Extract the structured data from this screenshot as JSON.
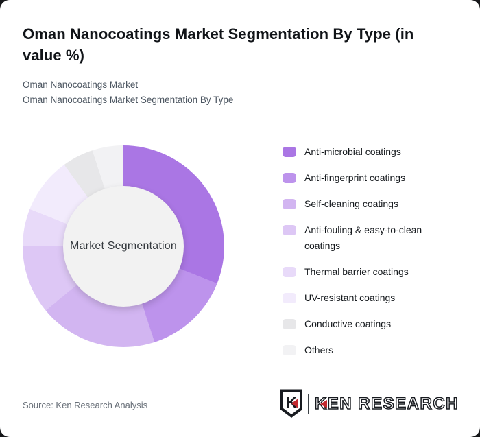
{
  "header": {
    "title": "Oman Nanocoatings Market Segmentation By Type (in value %)",
    "subtitle_line1": "Oman Nanocoatings Market",
    "subtitle_line2": "Oman Nanocoatings Market Segmentation By Type"
  },
  "chart_data": {
    "type": "pie",
    "subtype": "donut",
    "title": "Oman Nanocoatings Market Segmentation By Type (in value %)",
    "center_label": "Market Segmentation",
    "unit": "%",
    "start_angle_deg": 0,
    "direction": "clockwise",
    "legend_position": "right",
    "categories": [
      "Anti-microbial coatings",
      "Anti-fingerprint coatings",
      "Self-cleaning coatings",
      "Anti-fouling & easy-to-clean coatings",
      "Thermal barrier coatings",
      "UV-resistant coatings",
      "Conductive coatings",
      "Others"
    ],
    "values": [
      31,
      14,
      19,
      11,
      6,
      9,
      5,
      5
    ],
    "colors": [
      "#aa76e4",
      "#bd93ec",
      "#d2b5f1",
      "#ddc7f5",
      "#e8daf9",
      "#f2ebfc",
      "#e7e7e9",
      "#f2f2f4"
    ],
    "hole_color": "#f2f2f2"
  },
  "footer": {
    "source_text": "Source: Ken Research Analysis",
    "logo": {
      "brand": "KEN RESEARCH",
      "emblem_letter": "K",
      "accent_color": "#c2282e",
      "ink_color": "#181b20"
    }
  }
}
